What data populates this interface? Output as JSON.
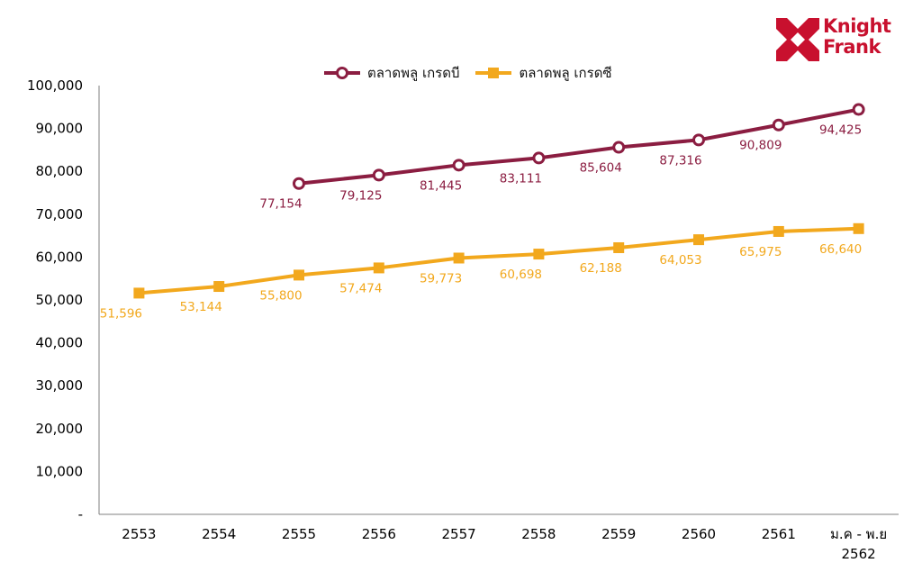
{
  "chart_data": {
    "type": "line",
    "categories": [
      "2553",
      "2554",
      "2555",
      "2556",
      "2557",
      "2558",
      "2559",
      "2560",
      "2561",
      "ม.ค - พ.ย 2562"
    ],
    "category_lines": [
      [
        "2553"
      ],
      [
        "2554"
      ],
      [
        "2555"
      ],
      [
        "2556"
      ],
      [
        "2557"
      ],
      [
        "2558"
      ],
      [
        "2559"
      ],
      [
        "2560"
      ],
      [
        "2561"
      ],
      [
        "ม.ค - พ.ย",
        "2562"
      ]
    ],
    "series": [
      {
        "name": "ตลาดพลู เกรดบี",
        "color": "#8b1d41",
        "marker": "circle",
        "values": [
          null,
          null,
          77154,
          79125,
          81445,
          83111,
          85604,
          87316,
          90809,
          94425
        ],
        "labels": [
          "",
          "",
          "77,154",
          "79,125",
          "81,445",
          "83,111",
          "85,604",
          "87,316",
          "90,809",
          "94,425"
        ]
      },
      {
        "name": "ตลาดพลู เกรดซี",
        "color": "#f2a81d",
        "marker": "square",
        "values": [
          51596,
          53144,
          55800,
          57474,
          59773,
          60698,
          62188,
          64053,
          65975,
          66640
        ],
        "labels": [
          "51,596",
          "53,144",
          "55,800",
          "57,474",
          "59,773",
          "60,698",
          "62,188",
          "64,053",
          "65,975",
          "66,640"
        ]
      }
    ],
    "ylim": [
      0,
      100000
    ],
    "yticks": [
      0,
      10000,
      20000,
      30000,
      40000,
      50000,
      60000,
      70000,
      80000,
      90000,
      100000
    ],
    "ytick_labels": [
      "-",
      "10,000",
      "20,000",
      "30,000",
      "40,000",
      "50,000",
      "60,000",
      "70,000",
      "80,000",
      "90,000",
      "100,000"
    ],
    "grid": false,
    "legend_position": "top-center",
    "title": "",
    "xlabel": "",
    "ylabel": ""
  },
  "logo": {
    "line1": "Knight",
    "line2": "Frank",
    "color": "#c8102e"
  }
}
